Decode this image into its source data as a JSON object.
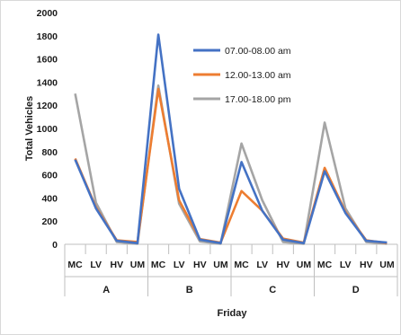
{
  "chart_data": {
    "type": "line",
    "title": "",
    "xlabel": "Friday",
    "ylabel": "Total Vehicles",
    "ylim": [
      0,
      2000
    ],
    "yticks": [
      0,
      200,
      400,
      600,
      800,
      1000,
      1200,
      1400,
      1600,
      1800,
      2000
    ],
    "grid": false,
    "legend_position": "top-right",
    "groups": [
      "A",
      "B",
      "C",
      "D"
    ],
    "categories": [
      "MC",
      "LV",
      "HV",
      "UM",
      "MC",
      "LV",
      "HV",
      "UM",
      "MC",
      "LV",
      "HV",
      "UM",
      "MC",
      "LV",
      "HV",
      "UM"
    ],
    "series": [
      {
        "name": "07.00-08.00 am",
        "color": "#4472C4",
        "values": [
          730,
          310,
          30,
          10,
          1810,
          480,
          40,
          10,
          710,
          290,
          40,
          10,
          630,
          270,
          30,
          15
        ]
      },
      {
        "name": "12.00-13.00 am",
        "color": "#ED7D31",
        "values": [
          740,
          320,
          35,
          20,
          1340,
          380,
          45,
          15,
          460,
          290,
          50,
          15,
          660,
          280,
          35,
          10
        ]
      },
      {
        "name": "17.00-18.00 pm",
        "color": "#A5A5A5",
        "values": [
          1300,
          360,
          20,
          5,
          1370,
          350,
          25,
          5,
          870,
          380,
          20,
          5,
          1050,
          310,
          20,
          5
        ]
      }
    ]
  }
}
